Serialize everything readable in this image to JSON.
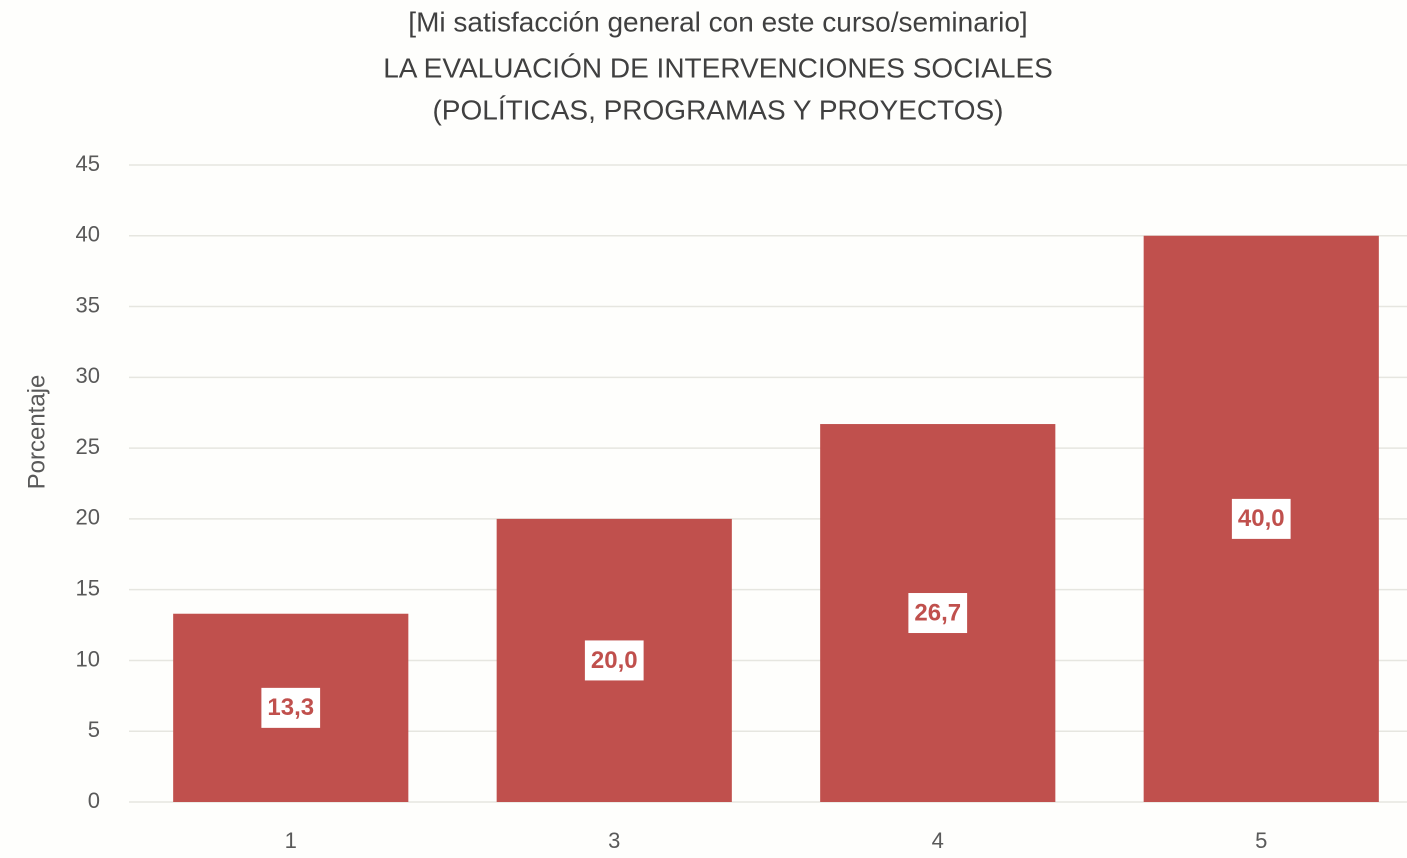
{
  "chart_data": {
    "type": "bar",
    "title": [
      "[Mi satisfacción general con este curso/seminario]",
      "LA EVALUACIÓN DE INTERVENCIONES SOCIALES",
      "(POLÍTICAS, PROGRAMAS Y PROYECTOS)"
    ],
    "y_label": "Porcentaje",
    "categories": [
      "1",
      "3",
      "4",
      "5"
    ],
    "values": [
      13.3,
      20.0,
      26.7,
      40.0
    ],
    "value_labels": [
      "13,3",
      "20,0",
      "26,7",
      "40,0"
    ],
    "color": "#c0504d",
    "ylim": [
      0,
      45
    ],
    "yticks": [
      0,
      5,
      10,
      15,
      20,
      25,
      30,
      35,
      40,
      45
    ],
    "grid": true
  }
}
